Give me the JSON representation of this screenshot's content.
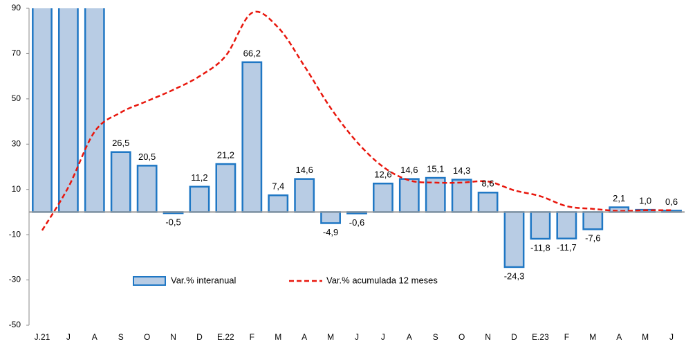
{
  "chart_data": {
    "type": "bar",
    "categories": [
      "J.21",
      "J",
      "A",
      "S",
      "O",
      "N",
      "D",
      "E.22",
      "F",
      "M",
      "A",
      "M",
      "J",
      "J",
      "A",
      "S",
      "O",
      "N",
      "D",
      "E.23",
      "F",
      "M",
      "A",
      "M",
      "J"
    ],
    "series": [
      {
        "name": "Var.% interanual",
        "type": "bar",
        "color": "#b8cce4",
        "edge": "#1f77c4",
        "values": [
          100,
          100,
          100,
          26.5,
          20.5,
          -0.5,
          11.2,
          21.2,
          66.2,
          7.4,
          14.6,
          -4.9,
          -0.6,
          12.6,
          14.6,
          15.1,
          14.3,
          8.6,
          -24.3,
          -11.8,
          -11.7,
          -7.6,
          2.1,
          1.0,
          0.6
        ],
        "value_labels": [
          null,
          null,
          null,
          "26,5",
          "20,5",
          "-0,5",
          "11,2",
          "21,2",
          "66,2",
          "7,4",
          "14,6",
          "-4,9",
          "-0,6",
          "12,6",
          "14,6",
          "15,1",
          "14,3",
          "8,6",
          "-24,3",
          "-11,8",
          "-11,7",
          "-7,6",
          "2,1",
          "1,0",
          "0,6"
        ]
      },
      {
        "name": "Var.% acumulada 12 meses",
        "type": "line",
        "color": "#e8160c",
        "values": [
          -8.1,
          11,
          35.5,
          44,
          49,
          54,
          60,
          69,
          88,
          81.5,
          64.5,
          46,
          31,
          20,
          14,
          13,
          13,
          13.5,
          9.6,
          7,
          2.6,
          1.4,
          0.5,
          0.8,
          0.8
        ]
      }
    ],
    "ylim": [
      -50,
      90
    ],
    "yticks": [
      -50,
      -30,
      -10,
      10,
      30,
      50,
      70,
      90
    ],
    "legend": "bottom"
  }
}
